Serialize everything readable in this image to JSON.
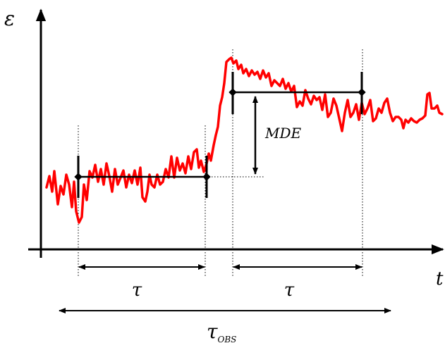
{
  "labels": {
    "y_axis": "ε",
    "x_axis": "t",
    "window_left": "τ",
    "window_right": "τ",
    "mde": "MDE",
    "tau_obs_main": "τ",
    "tau_obs_sub": "OBS"
  },
  "colors": {
    "signal": "#ff0000",
    "ink": "#000000"
  }
}
